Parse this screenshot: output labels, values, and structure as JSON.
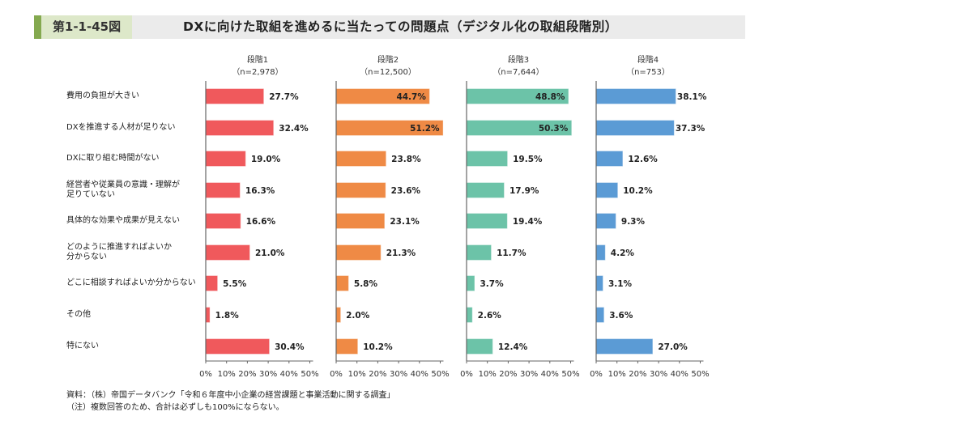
{
  "header": {
    "figure_number": "第1-1-45図",
    "title": "DXに向けた取組を進めるに当たっての問題点（デジタル化の取組段階別）"
  },
  "chart_data": {
    "type": "bar",
    "orientation": "horizontal",
    "title": "DXに向けた取組を進めるに当たっての問題点（デジタル化の取組段階別）",
    "categories": [
      "費用の負担が大きい",
      "DXを推進する人材が足りない",
      "DXに取り組む時間がない",
      "経営者や従業員の意識・理解が\n足りていない",
      "具体的な効果や成果が見えない",
      "どのように推進すればよいか\n分からない",
      "どこに相談すればよいか分からない",
      "その他",
      "特にない"
    ],
    "xlim": [
      0,
      50
    ],
    "x_ticks": [
      "0%",
      "10%",
      "20%",
      "30%",
      "40%",
      "50%"
    ],
    "grid": false,
    "series": [
      {
        "name": "段階1",
        "n_label": "（n=2,978）",
        "color": "#f0595c",
        "values": [
          27.7,
          32.4,
          19.0,
          16.3,
          16.6,
          21.0,
          5.5,
          1.8,
          30.4
        ],
        "labels": [
          "27.7%",
          "32.4%",
          "19.0%",
          "16.3%",
          "16.6%",
          "21.0%",
          "5.5%",
          "1.8%",
          "30.4%"
        ]
      },
      {
        "name": "段階2",
        "n_label": "（n=12,500）",
        "color": "#ef8a45",
        "values": [
          44.7,
          51.2,
          23.8,
          23.6,
          23.1,
          21.3,
          5.8,
          2.0,
          10.2
        ],
        "labels": [
          "44.7%",
          "51.2%",
          "23.8%",
          "23.6%",
          "23.1%",
          "21.3%",
          "5.8%",
          "2.0%",
          "10.2%"
        ]
      },
      {
        "name": "段階3",
        "n_label": "（n=7,644）",
        "color": "#6cc3a8",
        "values": [
          48.8,
          50.3,
          19.5,
          17.9,
          19.4,
          11.7,
          3.7,
          2.6,
          12.4
        ],
        "labels": [
          "48.8%",
          "50.3%",
          "19.5%",
          "17.9%",
          "19.4%",
          "11.7%",
          "3.7%",
          "2.6%",
          "12.4%"
        ]
      },
      {
        "name": "段階4",
        "n_label": "（n=753）",
        "color": "#5b9bd5",
        "values": [
          38.1,
          37.3,
          12.6,
          10.2,
          9.3,
          4.2,
          3.1,
          3.6,
          27.0
        ],
        "labels": [
          "38.1%",
          "37.3%",
          "12.6%",
          "10.2%",
          "9.3%",
          "4.2%",
          "3.1%",
          "3.6%",
          "27.0%"
        ]
      }
    ]
  },
  "notes": {
    "source": "資料：（株）帝国データバンク「令和６年度中小企業の経営課題と事業活動に関する調査」",
    "note": "（注）複数回答のため、合計は必ずしも100%にならない。"
  }
}
